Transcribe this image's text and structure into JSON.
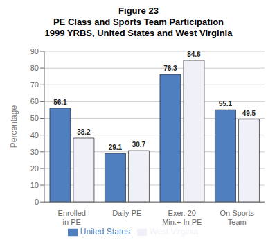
{
  "chart_data": {
    "type": "bar",
    "title": "Figure 23\nPE Class and Sports Team Participation\n1999 YRBS, United States and West Virginia",
    "categories": [
      "Enrolled\nin PE",
      "Daily PE",
      "Exer. 20\nMin.+ In PE",
      "On Sports\nTeam"
    ],
    "series": [
      {
        "name": "United States",
        "color": "#4f7fbe",
        "values": [
          56.1,
          29.1,
          76.3,
          55.1
        ]
      },
      {
        "name": "West Virginia",
        "color": "#f0f0f8",
        "values": [
          38.2,
          30.7,
          84.6,
          49.5
        ]
      }
    ],
    "ylabel": "Percentage",
    "ylim": [
      0,
      90
    ],
    "yticks": [
      0,
      10,
      20,
      30,
      40,
      50,
      60,
      70,
      80,
      90
    ],
    "grid": true,
    "legend": "bottom",
    "data_labels": true
  }
}
